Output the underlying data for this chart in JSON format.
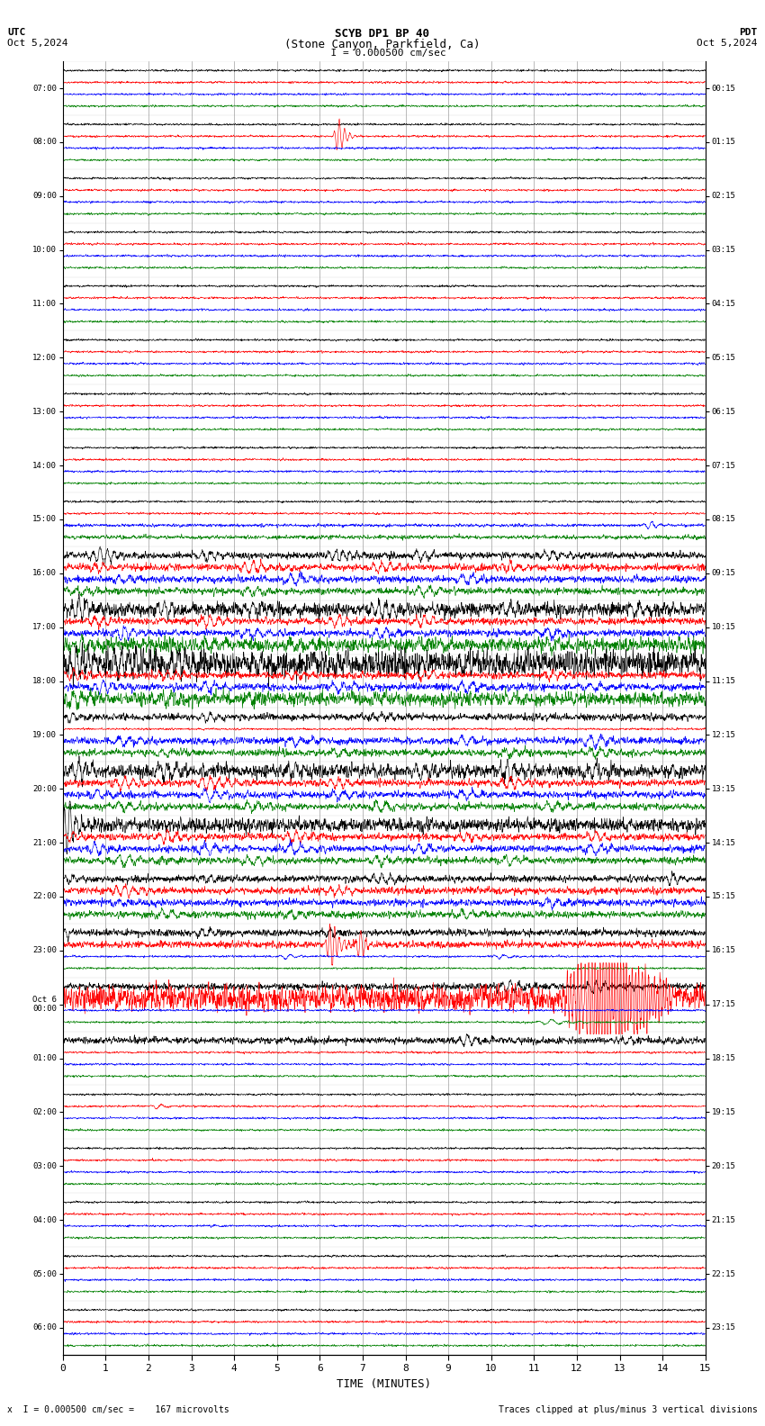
{
  "title_line1": "SCYB DP1 BP 40",
  "title_line2": "(Stone Canyon, Parkfield, Ca)",
  "scale_text": "  I = 0.000500 cm/sec",
  "utc_label": "UTC",
  "pdt_label": "PDT",
  "date_left": "Oct 5,2024",
  "date_right": "Oct 5,2024",
  "bottom_left": "x  I = 0.000500 cm/sec =    167 microvolts",
  "bottom_right": "Traces clipped at plus/minus 3 vertical divisions",
  "xlabel": "TIME (MINUTES)",
  "left_times": [
    "07:00",
    "08:00",
    "09:00",
    "10:00",
    "11:00",
    "12:00",
    "13:00",
    "14:00",
    "15:00",
    "16:00",
    "17:00",
    "18:00",
    "19:00",
    "20:00",
    "21:00",
    "22:00",
    "23:00",
    "Oct 6\n00:00",
    "01:00",
    "02:00",
    "03:00",
    "04:00",
    "05:00",
    "06:00"
  ],
  "right_times": [
    "00:15",
    "01:15",
    "02:15",
    "03:15",
    "04:15",
    "05:15",
    "06:15",
    "07:15",
    "08:15",
    "09:15",
    "10:15",
    "11:15",
    "12:15",
    "13:15",
    "14:15",
    "15:15",
    "16:15",
    "17:15",
    "18:15",
    "19:15",
    "20:15",
    "21:15",
    "22:15",
    "23:15"
  ],
  "n_rows": 24,
  "traces_per_row": 4,
  "x_min": 0,
  "x_max": 15,
  "x_ticks": [
    0,
    1,
    2,
    3,
    4,
    5,
    6,
    7,
    8,
    9,
    10,
    11,
    12,
    13,
    14,
    15
  ],
  "colors": [
    "black",
    "red",
    "blue",
    "green"
  ],
  "bg_color": "white",
  "seed": 42
}
